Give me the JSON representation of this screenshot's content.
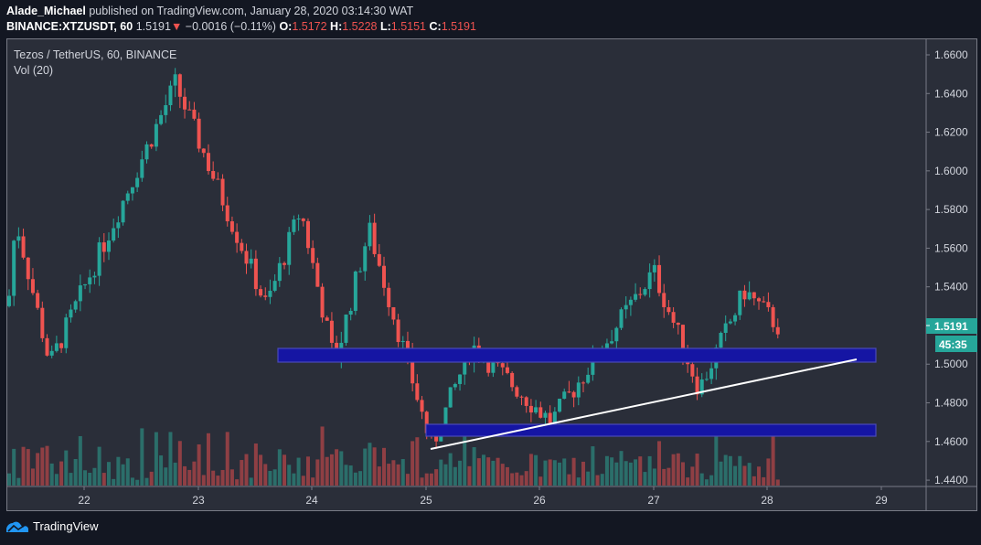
{
  "header": {
    "author": "Alade_Michael",
    "published_text": "published on TradingView.com, January 28, 2020 03:14:30 WAT",
    "symbol": "BINANCE:XTZUSDT, 60",
    "last_price": "1.5191",
    "change_arrow": "▼",
    "change": "−0.0016 (−0.11%)",
    "o_label": "O:",
    "o_value": "1.5172",
    "h_label": "H:",
    "h_value": "1.5228",
    "l_label": "L:",
    "l_value": "1.5151",
    "c_label": "C:",
    "c_value": "1.5191"
  },
  "legend": {
    "title": "Tezos / TetherUS, 60, BINANCE",
    "volume": "Vol (20)"
  },
  "price_axis": {
    "current_price_label": "1.5191",
    "countdown_label": "45:35",
    "accent_color": "#26a69a"
  },
  "footer": {
    "brand": "TradingView"
  },
  "colors": {
    "up": "#26a69a",
    "down": "#ef5350",
    "vol_up": "#2b6e6a",
    "vol_down": "#8f3f44",
    "zone": "#1515a3",
    "zone_border": "#4a4ab8",
    "trendline": "#ffffff",
    "background": "#2a2e39"
  },
  "chart_data": {
    "type": "candlestick",
    "title": "Tezos / TetherUS, 60, BINANCE",
    "symbol": "BINANCE:XTZUSDT",
    "interval": "60",
    "xlabel": "",
    "ylabel": "",
    "x_ticks": [
      "22",
      "23",
      "24",
      "25",
      "26",
      "27",
      "28",
      "29"
    ],
    "y_ticks": [
      "1.6600",
      "1.6400",
      "1.6200",
      "1.6000",
      "1.5800",
      "1.5600",
      "1.5400",
      "1.5200",
      "1.5000",
      "1.4800",
      "1.4600",
      "1.4400"
    ],
    "ylim": [
      1.44,
      1.668
    ],
    "grid": false,
    "last": {
      "open": 1.5172,
      "high": 1.5228,
      "low": 1.5151,
      "close": 1.5191,
      "change": -0.0016,
      "change_pct": -0.11
    },
    "annotations": [
      {
        "type": "rectangle",
        "label": "resistance/support zone",
        "x_from": "23.8",
        "x_to": "28.95",
        "price_from": 1.502,
        "price_to": 1.509
      },
      {
        "type": "rectangle",
        "label": "support zone",
        "x_from": "25.0",
        "x_to": "28.95",
        "price_from": 1.464,
        "price_to": 1.4685
      },
      {
        "type": "trendline",
        "label": "ascending trendline",
        "from": {
          "x": "25.05",
          "price": 1.4565
        },
        "to": {
          "x": "28.8",
          "price": 1.503
        }
      }
    ],
    "key_swings": [
      {
        "x": "21.4",
        "price": 1.575,
        "kind": "high"
      },
      {
        "x": "21.7",
        "price": 1.5,
        "kind": "low"
      },
      {
        "x": "22.8",
        "price": 1.645,
        "kind": "high"
      },
      {
        "x": "23.6",
        "price": 1.53,
        "kind": "low"
      },
      {
        "x": "23.9",
        "price": 1.58,
        "kind": "high"
      },
      {
        "x": "24.2",
        "price": 1.5,
        "kind": "low"
      },
      {
        "x": "24.5",
        "price": 1.57,
        "kind": "high"
      },
      {
        "x": "25.05",
        "price": 1.457,
        "kind": "low"
      },
      {
        "x": "25.4",
        "price": 1.51,
        "kind": "high"
      },
      {
        "x": "26.1",
        "price": 1.47,
        "kind": "low"
      },
      {
        "x": "27.0",
        "price": 1.548,
        "kind": "high"
      },
      {
        "x": "27.4",
        "price": 1.487,
        "kind": "low"
      },
      {
        "x": "27.8",
        "price": 1.538,
        "kind": "high"
      },
      {
        "x": "28.1",
        "price": 1.5191,
        "kind": "last"
      }
    ]
  }
}
